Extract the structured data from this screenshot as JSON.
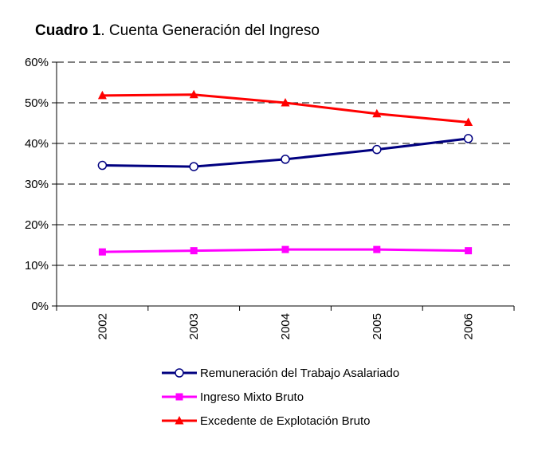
{
  "chart_data": {
    "type": "line",
    "title_bold": "Cuadro 1",
    "title_rest": ". Cuenta Generación del Ingreso",
    "categories": [
      "2002",
      "2003",
      "2004",
      "2005",
      "2006"
    ],
    "y_ticks": [
      "0%",
      "10%",
      "20%",
      "30%",
      "40%",
      "50%",
      "60%"
    ],
    "ylim": [
      0,
      60
    ],
    "y_unit": "%",
    "grid": true,
    "legend_position": "bottom",
    "series": [
      {
        "name": "Remuneración del Trabajo Asalariado",
        "color": "#000080",
        "marker": "circle",
        "values": [
          34.6,
          34.3,
          36.1,
          38.5,
          41.2
        ]
      },
      {
        "name": "Ingreso Mixto Bruto",
        "color": "#ff00ff",
        "marker": "square",
        "values": [
          13.3,
          13.6,
          13.9,
          13.9,
          13.6
        ]
      },
      {
        "name": "Excedente de Explotación Bruto",
        "color": "#ff0000",
        "marker": "triangle",
        "values": [
          51.8,
          52.0,
          50.0,
          47.3,
          45.2
        ]
      }
    ]
  }
}
